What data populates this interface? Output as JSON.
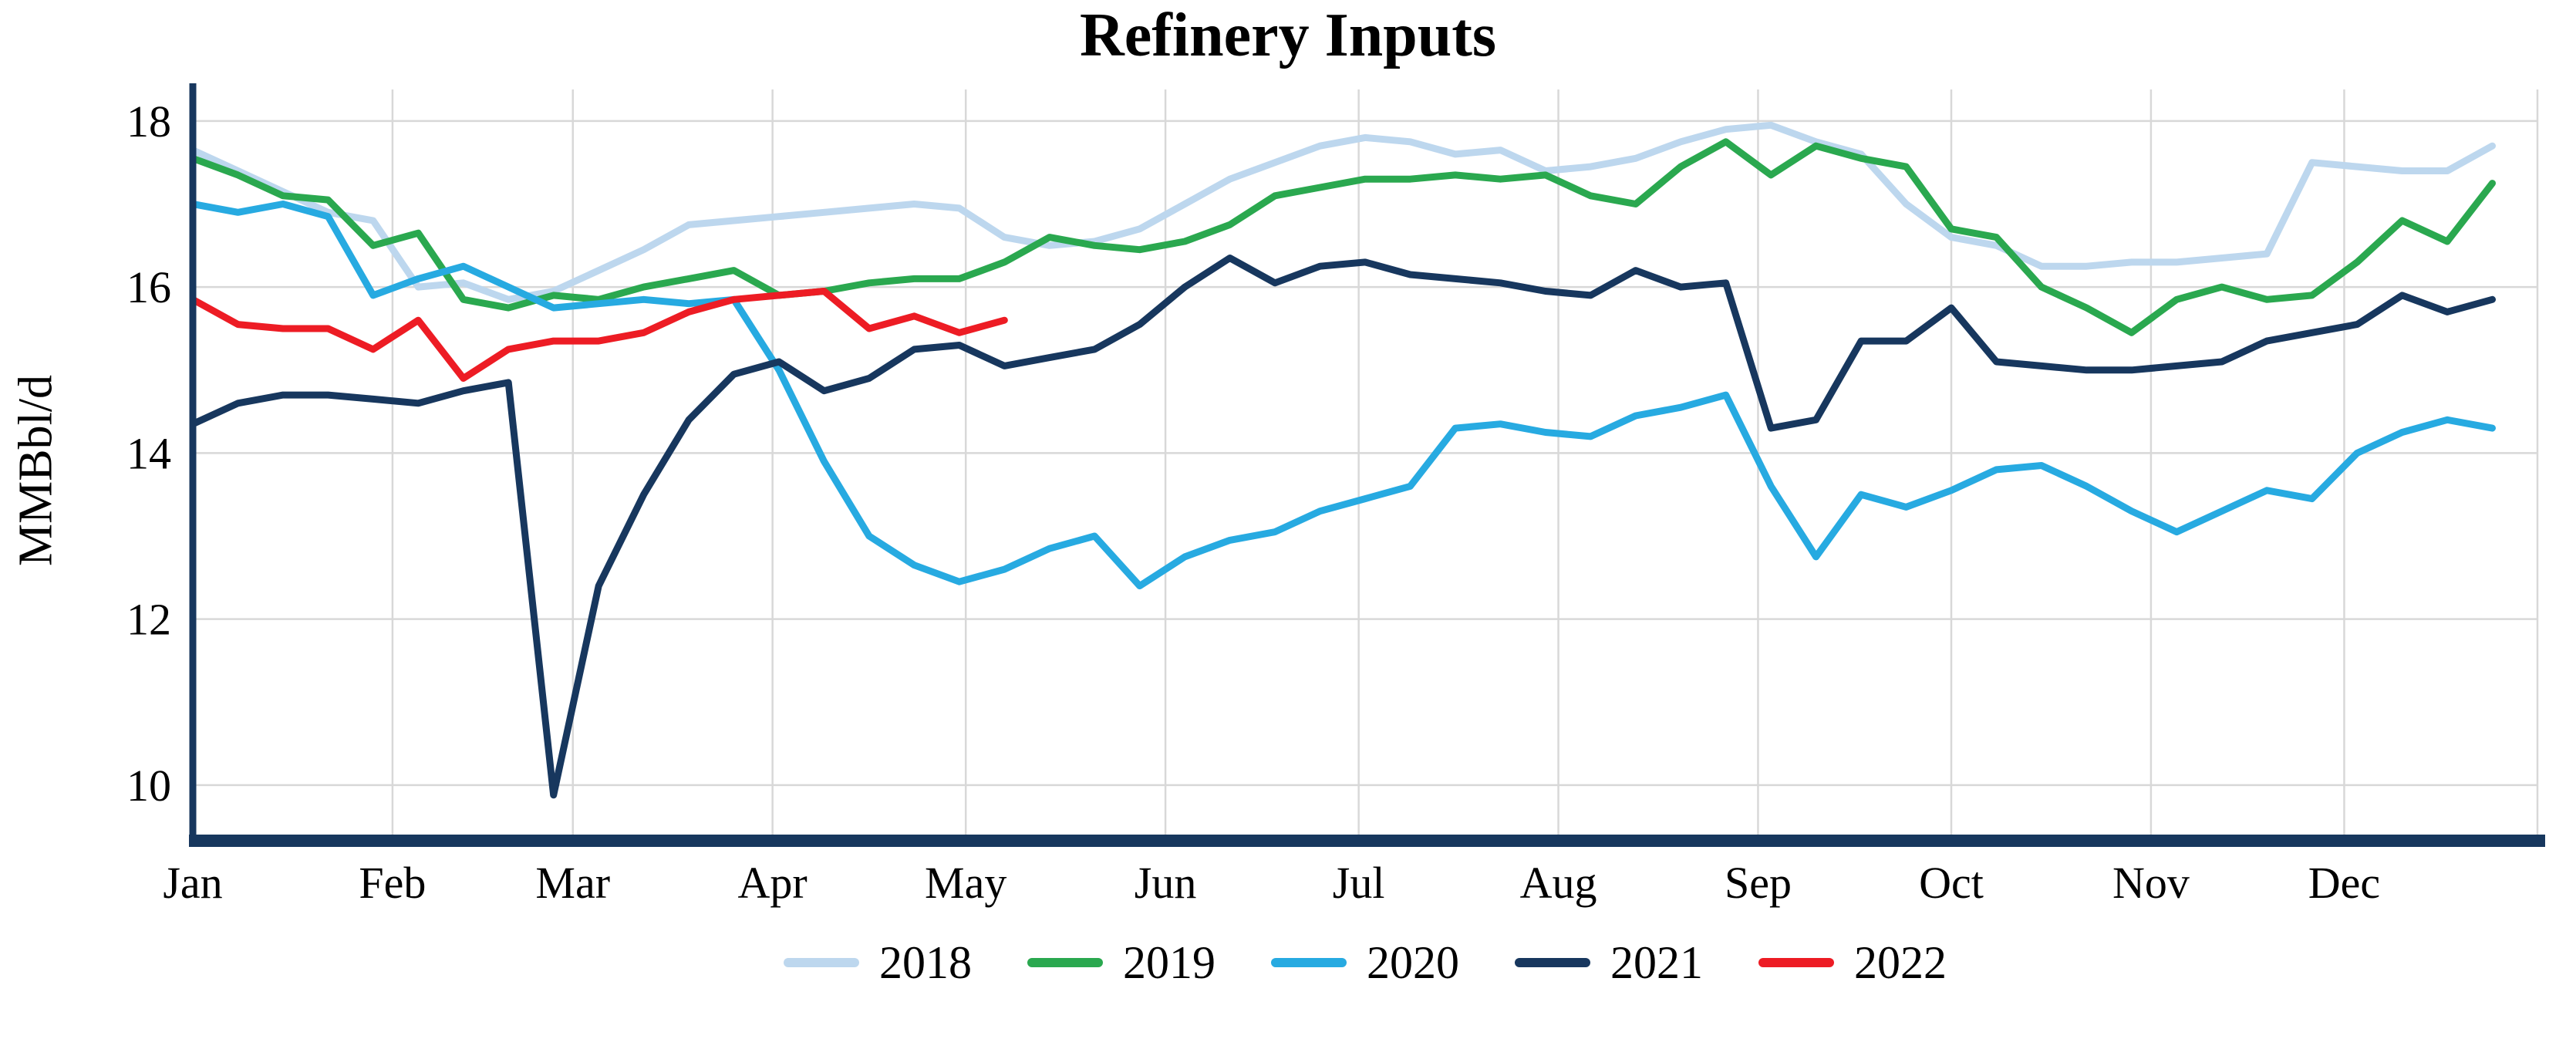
{
  "chart_data": {
    "type": "line",
    "title": "Refinery Inputs",
    "xlabel": "",
    "ylabel": "MMBbl/d",
    "ylim": [
      9.33,
      18.38
    ],
    "yticks": [
      10,
      12,
      14,
      16,
      18
    ],
    "grid": true,
    "legend_position": "bottom",
    "x_unit": "week-of-year",
    "days_total": 364,
    "month_labels": [
      "Jan",
      "Feb",
      "Mar",
      "Apr",
      "May",
      "Jun",
      "Jul",
      "Aug",
      "Sep",
      "Oct",
      "Nov",
      "Dec"
    ],
    "month_day_offsets": [
      0,
      31,
      59,
      90,
      120,
      151,
      181,
      212,
      243,
      273,
      304,
      334
    ],
    "colors": {
      "axis": "#17375E",
      "grid": "#D8D8D8"
    },
    "series": [
      {
        "name": "2018",
        "color": "#BDD7EE",
        "values": [
          17.65,
          17.4,
          17.15,
          16.9,
          16.8,
          16.0,
          16.05,
          15.85,
          15.95,
          16.2,
          16.45,
          16.75,
          16.8,
          16.85,
          16.9,
          16.95,
          17.0,
          16.95,
          16.6,
          16.5,
          16.55,
          16.7,
          17.0,
          17.3,
          17.5,
          17.7,
          17.8,
          17.75,
          17.6,
          17.65,
          17.4,
          17.45,
          17.55,
          17.75,
          17.9,
          17.95,
          17.75,
          17.6,
          17.0,
          16.6,
          16.5,
          16.25,
          16.25,
          16.3,
          16.3,
          16.35,
          16.4,
          17.5,
          17.45,
          17.4,
          17.4,
          17.7
        ]
      },
      {
        "name": "2019",
        "color": "#2AA84F",
        "values": [
          17.55,
          17.35,
          17.1,
          17.05,
          16.5,
          16.65,
          15.85,
          15.75,
          15.9,
          15.85,
          16.0,
          16.1,
          16.2,
          15.9,
          15.95,
          16.05,
          16.1,
          16.1,
          16.3,
          16.6,
          16.5,
          16.45,
          16.55,
          16.75,
          17.1,
          17.2,
          17.3,
          17.3,
          17.35,
          17.3,
          17.35,
          17.1,
          17.0,
          17.45,
          17.75,
          17.35,
          17.7,
          17.55,
          17.45,
          16.7,
          16.6,
          16.0,
          15.75,
          15.45,
          15.85,
          16.0,
          15.85,
          15.9,
          16.3,
          16.8,
          16.55,
          17.25
        ]
      },
      {
        "name": "2020",
        "color": "#27AAE1",
        "values": [
          17.0,
          16.9,
          17.0,
          16.85,
          15.9,
          16.1,
          16.25,
          16.0,
          15.75,
          15.8,
          15.85,
          15.8,
          15.85,
          15.0,
          13.9,
          13.0,
          12.65,
          12.45,
          12.6,
          12.85,
          13.0,
          12.4,
          12.75,
          12.95,
          13.05,
          13.3,
          13.45,
          13.6,
          14.3,
          14.35,
          14.25,
          14.2,
          14.45,
          14.55,
          14.7,
          13.6,
          12.75,
          13.5,
          13.35,
          13.55,
          13.8,
          13.85,
          13.6,
          13.3,
          13.05,
          13.3,
          13.55,
          13.45,
          14.0,
          14.25,
          14.4,
          14.3
        ]
      },
      {
        "name": "2021",
        "color": "#17375E",
        "values": [
          14.35,
          14.6,
          14.7,
          14.7,
          14.65,
          14.6,
          14.75,
          14.85,
          9.88,
          12.4,
          13.5,
          14.4,
          14.95,
          15.1,
          14.75,
          14.9,
          15.25,
          15.3,
          15.05,
          15.15,
          15.25,
          15.55,
          16.0,
          16.35,
          16.05,
          16.25,
          16.3,
          16.15,
          16.1,
          16.05,
          15.95,
          15.9,
          16.2,
          16.0,
          16.05,
          14.3,
          14.4,
          15.35,
          15.35,
          15.75,
          15.1,
          15.05,
          15.0,
          15.0,
          15.05,
          15.1,
          15.35,
          15.45,
          15.55,
          15.9,
          15.7,
          15.85
        ]
      },
      {
        "name": "2022",
        "color": "#ED1C24",
        "values": [
          15.85,
          15.55,
          15.5,
          15.5,
          15.25,
          15.6,
          14.9,
          15.25,
          15.35,
          15.35,
          15.45,
          15.7,
          15.85,
          15.9,
          15.95,
          15.5,
          15.65,
          15.45,
          15.6
        ]
      }
    ]
  }
}
